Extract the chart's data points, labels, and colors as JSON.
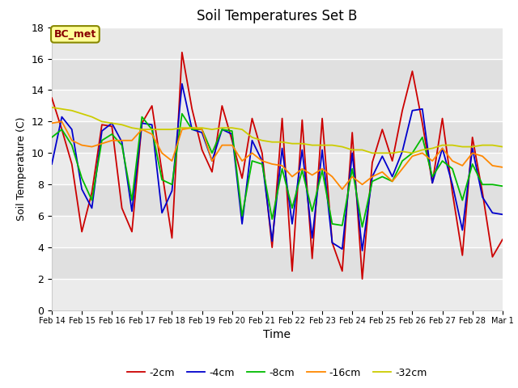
{
  "title": "Soil Temperatures Set B",
  "xlabel": "Time",
  "ylabel": "Soil Temperature (C)",
  "ylim": [
    0,
    18
  ],
  "annotation": "BC_met",
  "legend_labels": [
    "-2cm",
    "-4cm",
    "-8cm",
    "-16cm",
    "-32cm"
  ],
  "line_colors": [
    "#cc0000",
    "#0000cc",
    "#00bb00",
    "#ff8800",
    "#cccc00"
  ],
  "background_color": "#ffffff",
  "plot_bg_bands": [
    [
      14,
      16,
      "#e0e0e0"
    ],
    [
      12,
      14,
      "#ebebeb"
    ],
    [
      10,
      12,
      "#e0e0e0"
    ],
    [
      8,
      10,
      "#ebebeb"
    ],
    [
      6,
      8,
      "#e0e0e0"
    ],
    [
      4,
      6,
      "#ebebeb"
    ],
    [
      2,
      4,
      "#e0e0e0"
    ],
    [
      0,
      2,
      "#ebebeb"
    ]
  ],
  "x_tick_labels": [
    "Feb 14",
    "Feb 15",
    "Feb 16",
    "Feb 17",
    "Feb 18",
    "Feb 19",
    "Feb 20",
    "Feb 21",
    "Feb 22",
    "Feb 23",
    "Feb 24",
    "Feb 25",
    "Feb 26",
    "Feb 27",
    "Feb 28",
    "Mar 1"
  ],
  "data_2cm": [
    13.5,
    11.5,
    9.3,
    5.0,
    7.5,
    11.8,
    11.7,
    6.5,
    5.0,
    11.9,
    13.0,
    8.8,
    4.6,
    16.4,
    12.8,
    10.2,
    8.8,
    13.0,
    10.8,
    8.4,
    12.2,
    10.0,
    4.0,
    12.2,
    2.5,
    12.1,
    3.3,
    12.2,
    4.3,
    2.5,
    11.3,
    2.0,
    9.4,
    11.5,
    9.5,
    12.7,
    15.2,
    11.9,
    8.1,
    12.2,
    7.5,
    3.5,
    11.0,
    7.5,
    3.4,
    4.5
  ],
  "data_4cm": [
    9.3,
    12.3,
    11.5,
    7.7,
    6.5,
    11.4,
    11.9,
    10.7,
    6.3,
    11.9,
    11.8,
    6.2,
    7.6,
    14.4,
    11.5,
    11.3,
    9.5,
    11.5,
    11.2,
    5.5,
    10.8,
    9.5,
    4.4,
    10.3,
    5.5,
    10.2,
    4.6,
    10.2,
    4.3,
    3.9,
    10.0,
    3.8,
    8.5,
    9.8,
    8.5,
    10.1,
    12.7,
    12.8,
    8.1,
    10.3,
    8.0,
    5.1,
    10.3,
    7.2,
    6.2,
    6.1
  ],
  "data_8cm": [
    11.0,
    11.5,
    10.5,
    8.4,
    7.0,
    10.8,
    11.2,
    10.5,
    7.0,
    12.3,
    11.5,
    8.3,
    8.0,
    12.5,
    11.5,
    11.5,
    10.0,
    11.5,
    11.4,
    6.0,
    9.5,
    9.3,
    5.8,
    9.0,
    6.5,
    8.9,
    6.3,
    8.9,
    5.5,
    5.4,
    9.0,
    5.3,
    8.2,
    8.5,
    8.2,
    9.5,
    10.0,
    11.0,
    8.5,
    9.5,
    9.0,
    7.0,
    9.3,
    8.0,
    8.0,
    7.9
  ],
  "data_16cm": [
    11.9,
    12.0,
    10.8,
    10.5,
    10.4,
    10.6,
    10.8,
    10.8,
    10.8,
    11.5,
    11.2,
    10.0,
    9.5,
    11.5,
    11.6,
    11.5,
    9.5,
    10.5,
    10.5,
    9.5,
    10.0,
    9.5,
    9.3,
    9.2,
    8.5,
    9.0,
    8.6,
    9.0,
    8.5,
    7.7,
    8.5,
    8.0,
    8.5,
    8.8,
    8.2,
    9.0,
    9.8,
    10.0,
    9.5,
    10.3,
    9.5,
    9.2,
    10.0,
    9.8,
    9.2,
    9.1
  ],
  "data_32cm": [
    12.9,
    12.8,
    12.7,
    12.5,
    12.3,
    12.0,
    11.9,
    11.8,
    11.6,
    11.5,
    11.5,
    11.5,
    11.5,
    11.6,
    11.6,
    11.6,
    11.5,
    11.6,
    11.6,
    11.5,
    11.0,
    10.8,
    10.7,
    10.7,
    10.6,
    10.6,
    10.5,
    10.5,
    10.5,
    10.4,
    10.2,
    10.2,
    10.0,
    10.0,
    10.0,
    10.1,
    10.0,
    10.2,
    10.3,
    10.5,
    10.5,
    10.4,
    10.4,
    10.5,
    10.5,
    10.4
  ]
}
